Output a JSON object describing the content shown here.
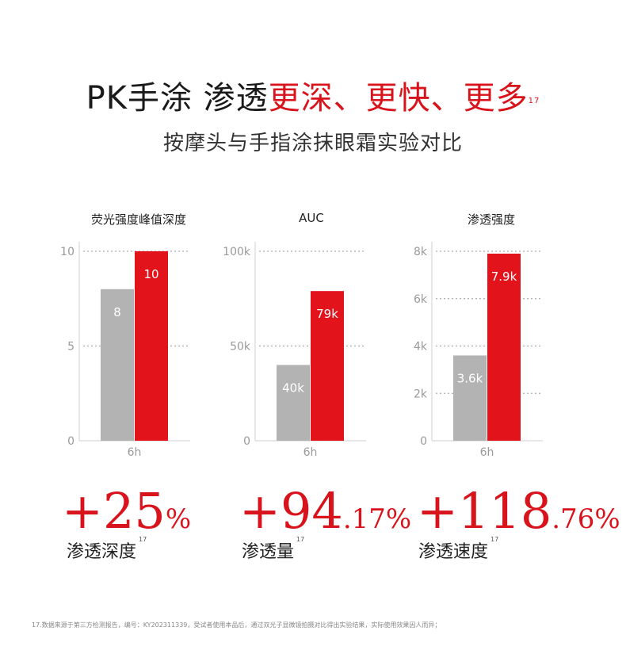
{
  "header": {
    "title_main": "PK手涂 渗透",
    "title_highlight": "更深、更快、更多",
    "title_ref": "17",
    "subtitle": "按摩头与手指涂抹眼霜实验对比"
  },
  "colors": {
    "accent": "#d8131b",
    "gray_bar": "#b3b3b3",
    "grid": "#aaaaaa"
  },
  "chart_data": [
    {
      "type": "bar",
      "title": "荧光强度峰值深度",
      "categories": [
        "6h"
      ],
      "series": [
        {
          "values": [
            8
          ],
          "labels": [
            "8"
          ],
          "color": "#b3b3b3"
        },
        {
          "values": [
            10
          ],
          "labels": [
            "10"
          ],
          "color": "#e3131c"
        }
      ],
      "ylim": [
        0,
        10
      ],
      "yticks": [
        0,
        5,
        10
      ],
      "ytick_labels": [
        "0",
        "5",
        "10"
      ],
      "grid": true
    },
    {
      "type": "bar",
      "title": "AUC",
      "categories": [
        "6h"
      ],
      "series": [
        {
          "values": [
            40000
          ],
          "labels": [
            "40k"
          ],
          "color": "#b3b3b3"
        },
        {
          "values": [
            79000
          ],
          "labels": [
            "79k"
          ],
          "color": "#e3131c"
        }
      ],
      "ylim": [
        0,
        100000
      ],
      "yticks": [
        0,
        50000,
        100000
      ],
      "ytick_labels": [
        "0",
        "50k",
        "100k"
      ],
      "grid": true
    },
    {
      "type": "bar",
      "title": "渗透强度",
      "categories": [
        "6h"
      ],
      "series": [
        {
          "values": [
            3600
          ],
          "labels": [
            "3.6k"
          ],
          "color": "#b3b3b3"
        },
        {
          "values": [
            7900
          ],
          "labels": [
            "7.9k"
          ],
          "color": "#e3131c"
        }
      ],
      "ylim": [
        0,
        8000
      ],
      "yticks": [
        0,
        2000,
        4000,
        6000,
        8000
      ],
      "ytick_labels": [
        "0",
        "2k",
        "4k",
        "6k",
        "8k"
      ],
      "grid": true
    }
  ],
  "stats": [
    {
      "big": "+25",
      "small": "%",
      "label": "渗透深度",
      "ref": "17"
    },
    {
      "big": "+94",
      "small": ".17%",
      "label": "渗透量",
      "ref": "17"
    },
    {
      "big": "+118",
      "small": ".76%",
      "label": "渗透速度",
      "ref": "17"
    }
  ],
  "footnote": "17.数据来源于第三方检测报告，编号：KY202311339，受试者使用本品后，通过双光子显微镜拍摄对比得出实验结果，实际使用效果因人而异；"
}
